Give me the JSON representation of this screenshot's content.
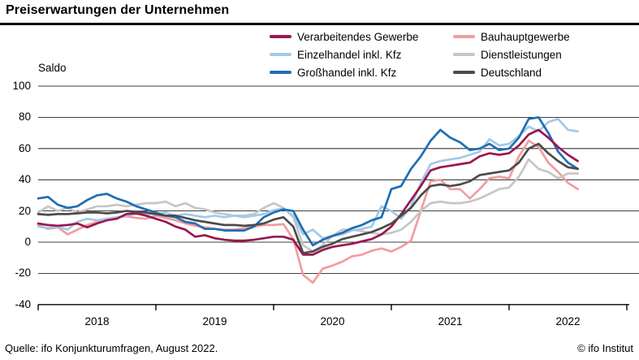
{
  "header": {
    "title": "Preiserwartungen der Unternehmen"
  },
  "axis": {
    "saldo_label": "Saldo"
  },
  "footer": {
    "source": "Quelle: ifo Konjunkturumfragen, August 2022.",
    "copyright": "© ifo Institut"
  },
  "chart_data": {
    "type": "line",
    "title": "Preiserwartungen der Unternehmen",
    "ylabel": "Saldo",
    "ylim": [
      -40,
      100
    ],
    "grid": "horizontal",
    "legend_position": "top-right",
    "x_start": "2018-01",
    "x_end": "2022-08",
    "x_frequency": "monthly",
    "x_tick_years": [
      "2018",
      "2019",
      "2020",
      "2021",
      "2022"
    ],
    "y_ticks": [
      100,
      80,
      60,
      40,
      20,
      0,
      -20,
      -40
    ],
    "series": [
      {
        "label": "Verarbeitendes Gewerbe",
        "color": "#9a1750",
        "values": [
          12,
          11,
          10.5,
          11,
          12,
          9.5,
          12,
          14,
          15,
          18,
          18.5,
          17,
          15,
          13,
          10,
          8,
          3.5,
          4.5,
          2.5,
          1.5,
          1,
          1,
          1.5,
          2.5,
          3.5,
          3.5,
          1.5,
          -8,
          -8,
          -5,
          -3,
          -2,
          -1,
          0.5,
          2,
          5,
          10,
          18,
          27,
          36,
          46,
          48,
          49,
          50,
          51,
          55,
          57,
          56,
          57,
          62,
          69,
          72,
          67,
          61,
          56,
          52
        ]
      },
      {
        "label": "Bauhauptgewerbe",
        "color": "#f29d9d",
        "values": [
          11,
          8.5,
          9.5,
          5,
          8,
          11,
          13,
          15,
          16,
          16.5,
          15.5,
          15,
          17,
          15.5,
          14,
          12,
          10.5,
          9.5,
          8.5,
          8,
          8,
          9,
          10,
          11,
          11,
          11.5,
          2,
          -21,
          -26,
          -17,
          -15,
          -12.5,
          -9,
          -8,
          -5.5,
          -4,
          -6,
          -3,
          1,
          20,
          39,
          40,
          34,
          34,
          28,
          34,
          41,
          42,
          41,
          55,
          65,
          61,
          51,
          45,
          38,
          34
        ]
      },
      {
        "label": "Einzelhandel inkl. Kfz",
        "color": "#a3c9e8",
        "values": [
          10,
          9,
          10,
          8,
          13,
          15,
          14,
          15,
          16,
          17,
          18,
          18,
          18,
          19,
          17,
          18,
          17,
          16,
          17,
          16,
          17,
          16,
          17,
          18,
          20.5,
          21.5,
          17,
          5,
          8,
          2.5,
          4,
          5,
          7.5,
          8.5,
          10,
          23,
          20,
          15,
          23,
          38,
          50,
          52,
          53,
          54,
          56,
          58,
          66,
          62,
          63,
          68,
          74,
          71,
          77,
          79,
          72,
          71
        ]
      },
      {
        "label": "Dienstleistungen",
        "color": "#c6c6c6",
        "values": [
          19,
          23,
          20,
          22,
          19,
          21,
          23,
          23,
          24,
          23,
          24,
          25,
          25,
          26,
          23,
          25,
          22,
          21,
          19,
          18,
          17,
          17,
          18,
          22,
          25,
          22,
          16,
          -2,
          -6,
          -2,
          4,
          8,
          8,
          7,
          6,
          5,
          6,
          8,
          13,
          20,
          25,
          26,
          25,
          25,
          26,
          28,
          31,
          34,
          35,
          42,
          53,
          47,
          45,
          41,
          44,
          44
        ]
      },
      {
        "label": "Großhandel inkl. Kfz",
        "color": "#1f6eb4",
        "values": [
          28,
          29,
          24,
          22,
          23,
          27,
          30,
          31,
          28,
          26,
          23,
          21,
          19,
          17,
          16,
          13,
          12,
          8.5,
          8.5,
          7.5,
          7.5,
          7.5,
          10,
          16,
          19,
          21,
          20,
          8,
          -2,
          1.5,
          4,
          6,
          9,
          11,
          14,
          16,
          34,
          36,
          47,
          55,
          65,
          72,
          67,
          64,
          59,
          60,
          63,
          59,
          60,
          67,
          79,
          80,
          70,
          58,
          51,
          47
        ]
      },
      {
        "label": "Deutschland",
        "color": "#4b4b4b",
        "values": [
          18,
          17.5,
          18,
          18,
          18.5,
          19,
          19,
          18.5,
          19,
          20,
          19.5,
          19,
          18,
          17,
          17,
          15.5,
          14,
          13,
          12,
          11,
          11,
          10.5,
          11,
          12,
          14.5,
          16,
          10,
          -7,
          -6,
          -3,
          -1,
          2,
          3.5,
          5,
          6.5,
          9,
          12,
          17,
          22,
          30,
          36,
          37,
          36,
          37,
          39,
          43,
          44,
          45,
          46,
          51,
          60,
          63,
          57,
          52,
          48,
          47
        ]
      }
    ]
  }
}
